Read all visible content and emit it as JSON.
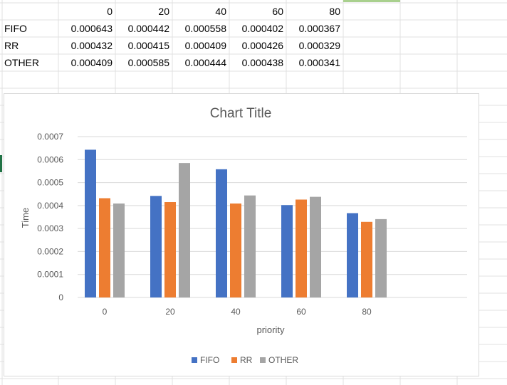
{
  "table": {
    "headers": [
      "0",
      "20",
      "40",
      "60",
      "80"
    ],
    "rows": [
      {
        "label": "FIFO",
        "values": [
          "0.000643",
          "0.000442",
          "0.000558",
          "0.000402",
          "0.000367"
        ]
      },
      {
        "label": "RR",
        "values": [
          "0.000432",
          "0.000415",
          "0.000409",
          "0.000426",
          "0.000329"
        ]
      },
      {
        "label": "OTHER",
        "values": [
          "0.000409",
          "0.000585",
          "0.000444",
          "0.000438",
          "0.000341"
        ]
      }
    ]
  },
  "chart_data": {
    "type": "bar",
    "title": "Chart Title",
    "xlabel": "priority",
    "ylabel": "Time",
    "categories": [
      "0",
      "20",
      "40",
      "60",
      "80"
    ],
    "series": [
      {
        "name": "FIFO",
        "values": [
          0.000643,
          0.000442,
          0.000558,
          0.000402,
          0.000367
        ],
        "color": "#4472C4"
      },
      {
        "name": "RR",
        "values": [
          0.000432,
          0.000415,
          0.000409,
          0.000426,
          0.000329
        ],
        "color": "#ED7D31"
      },
      {
        "name": "OTHER",
        "values": [
          0.000409,
          0.000585,
          0.000444,
          0.000438,
          0.000341
        ],
        "color": "#A5A5A5"
      }
    ],
    "ylim": [
      0,
      0.0007
    ],
    "yticks": [
      "0",
      "0.0001",
      "0.0002",
      "0.0003",
      "0.0004",
      "0.0005",
      "0.0006",
      "0.0007"
    ],
    "grid": true,
    "legend_position": "bottom"
  },
  "colors": {
    "gridline": "#d9d9d9",
    "sheet_grid": "#e0e0e0",
    "selection": "#217346"
  }
}
